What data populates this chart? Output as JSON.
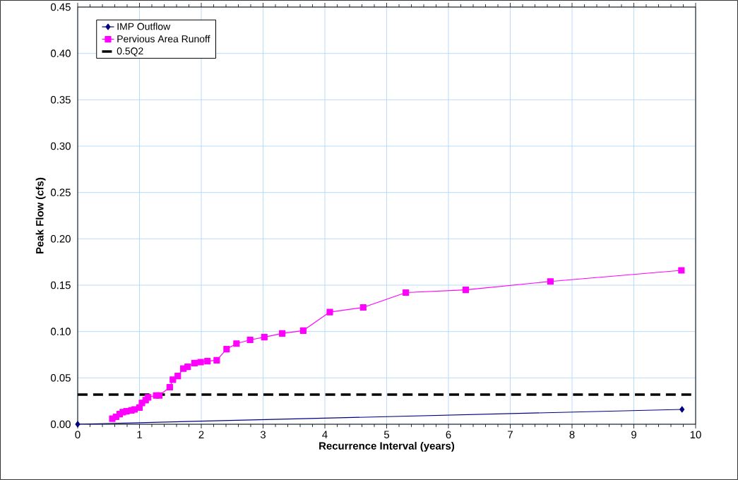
{
  "chart_data": {
    "type": "line",
    "xlabel": "Recurrence Interval (years)",
    "ylabel": "Peak Flow (cfs)",
    "xlim": [
      0,
      10
    ],
    "ylim": [
      0,
      0.45
    ],
    "xticks": [
      0,
      1,
      2,
      3,
      4,
      5,
      6,
      7,
      8,
      9,
      10
    ],
    "yticks": [
      {
        "value": 0,
        "label": "0.00"
      },
      {
        "value": 0.05,
        "label": "0.05"
      },
      {
        "value": 0.1,
        "label": "0.10"
      },
      {
        "value": 0.15,
        "label": "0.15"
      },
      {
        "value": 0.2,
        "label": "0.20"
      },
      {
        "value": 0.25,
        "label": "0.25"
      },
      {
        "value": 0.3,
        "label": "0.30"
      },
      {
        "value": 0.35,
        "label": "0.35"
      },
      {
        "value": 0.4,
        "label": "0.40"
      },
      {
        "value": 0.45,
        "label": "0.45"
      }
    ],
    "grid": true,
    "legend": "top left",
    "series": [
      {
        "name": "IMP Outflow",
        "color": "#000080",
        "marker": "diamond",
        "x": [
          0,
          9.78
        ],
        "values": [
          0,
          0.016
        ]
      },
      {
        "name": "Pervious Area Runoff",
        "color": "#ff00ff",
        "marker": "square",
        "x": [
          0.56,
          0.62,
          0.68,
          0.73,
          0.79,
          0.87,
          0.92,
          1.0,
          1.04,
          1.1,
          1.14,
          1.27,
          1.32,
          1.49,
          1.54,
          1.62,
          1.71,
          1.78,
          1.89,
          1.99,
          2.1,
          2.25,
          2.41,
          2.57,
          2.79,
          3.02,
          3.31,
          3.65,
          4.08,
          4.62,
          5.31,
          6.28,
          7.65,
          9.77
        ],
        "values": [
          0.006,
          0.008,
          0.011,
          0.013,
          0.014,
          0.015,
          0.016,
          0.018,
          0.023,
          0.026,
          0.029,
          0.031,
          0.031,
          0.04,
          0.048,
          0.052,
          0.06,
          0.062,
          0.066,
          0.067,
          0.068,
          0.069,
          0.081,
          0.087,
          0.091,
          0.094,
          0.098,
          0.101,
          0.121,
          0.126,
          0.142,
          0.145,
          0.154,
          0.166
        ]
      }
    ],
    "ref_lines": [
      {
        "axis": "y",
        "value": 0.032,
        "label": "0.5Q2",
        "color": "#000000",
        "line_style": "dashed"
      }
    ]
  }
}
